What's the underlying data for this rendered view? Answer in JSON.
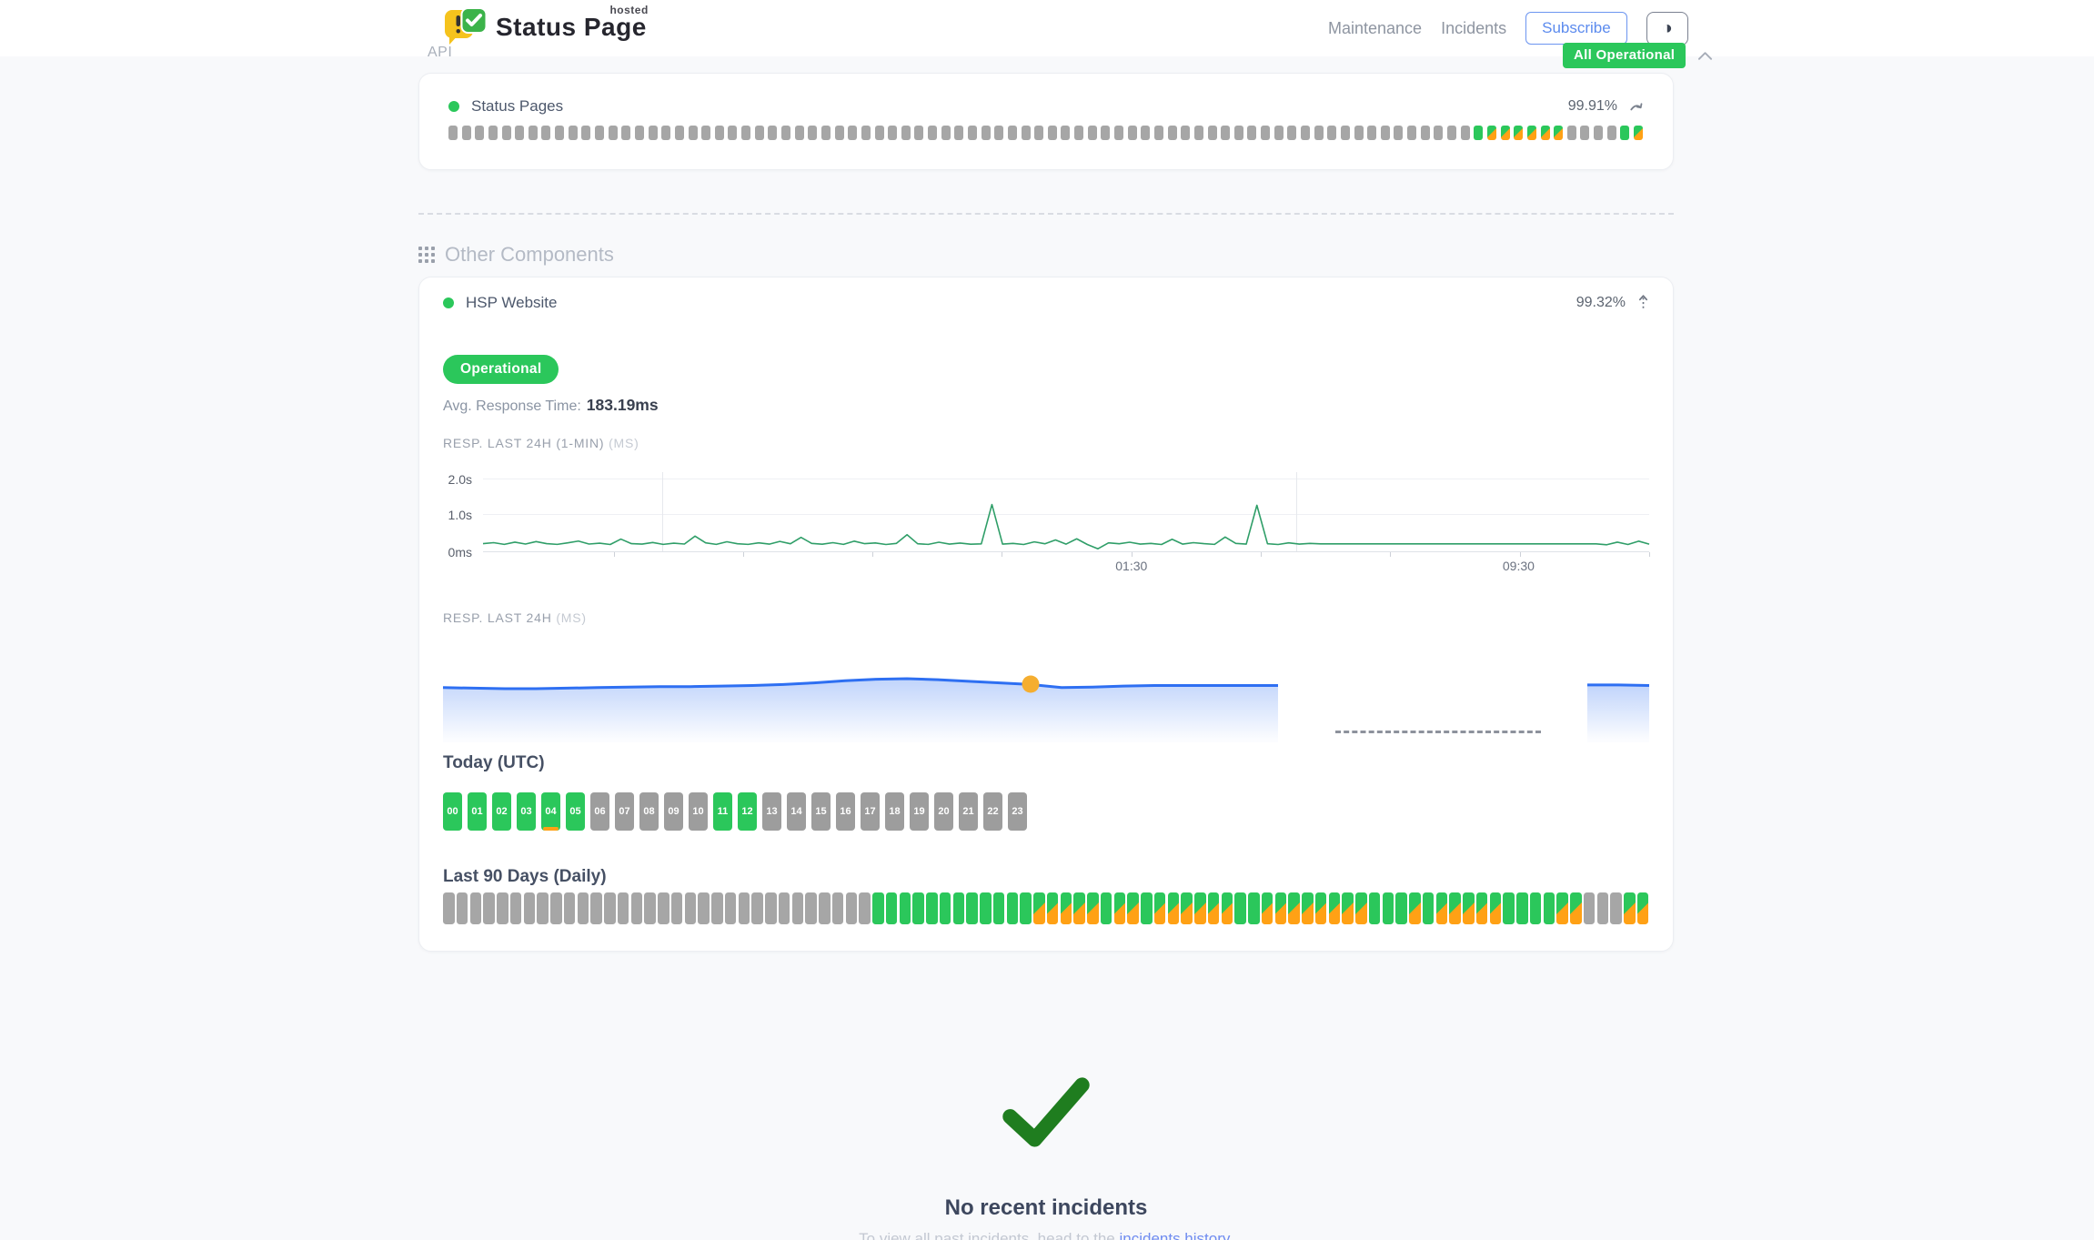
{
  "header": {
    "logo": {
      "title": "Status Page",
      "superscript": "hosted"
    },
    "nav": [
      {
        "label": "Maintenance"
      },
      {
        "label": "Incidents"
      }
    ],
    "subscribe_label": "Subscribe",
    "theme_icon": "◑",
    "status_badge": {
      "label": "All Operational",
      "color": "#2bc75b"
    }
  },
  "sections": {
    "api": {
      "title": "API",
      "component": {
        "name": "Status Pages",
        "uptime_percent": "99.91%",
        "status_color": "#2bc75b",
        "bars_legend": {
          "e": "no-data",
          "u": "operational",
          "s": "partial-degraded"
        },
        "bars": "eeeeeeeeeeeeeeeeeeeeeeeeeeeeeeeeeeeeeeeeeeeeeeeeeeeeeeeeeeeeeeeeeeeeeeeeeeeeeusssssseeeeus"
      }
    },
    "other": {
      "title": "Other Components",
      "component": {
        "name": "HSP Website",
        "uptime_percent": "99.32%",
        "status_badge": "Operational",
        "avg_response_label": "Avg. Response Time:",
        "avg_response_value": "183.19ms"
      }
    }
  },
  "chart_data": [
    {
      "id": "resp_24h_1min",
      "type": "line",
      "title": "RESP. LAST 24H (1-MIN)",
      "unit_label": "(MS)",
      "ylabel_ticks": [
        "2.0s",
        "1.0s",
        "0ms"
      ],
      "ylim_ms": [
        0,
        2150
      ],
      "xtick_labels": [
        "01:30",
        "09:30"
      ],
      "line_color": "#2f9e68",
      "values_ms": [
        185,
        210,
        165,
        225,
        175,
        240,
        185,
        165,
        205,
        255,
        175,
        195,
        162,
        310,
        185,
        172,
        215,
        165,
        195,
        175,
        390,
        205,
        163,
        235,
        182,
        165,
        205,
        172,
        245,
        182,
        355,
        192,
        170,
        212,
        163,
        252,
        183,
        203,
        162,
        192,
        430,
        182,
        163,
        222,
        172,
        202,
        168,
        178,
        1250,
        172,
        192,
        162,
        232,
        182,
        285,
        172,
        315,
        162,
        45,
        205,
        182,
        222,
        172,
        192,
        162,
        305,
        172,
        212,
        183,
        163,
        365,
        192,
        172,
        1230,
        182,
        162,
        205,
        172,
        192,
        180,
        180,
        180,
        180,
        180,
        180,
        180,
        180,
        180,
        180,
        180,
        180,
        180,
        180,
        180,
        180,
        180,
        180,
        180,
        180,
        180,
        180,
        180,
        180,
        180,
        180,
        180,
        155,
        225,
        162,
        252,
        172
      ]
    },
    {
      "id": "resp_24h",
      "type": "area",
      "title": "RESP. LAST 24H",
      "unit_label": "(MS)",
      "line_color": "#2e6ff2",
      "marker": {
        "index": 19,
        "color": "#f5ae30"
      },
      "values_ms": [
        196,
        195,
        194,
        194,
        195,
        196,
        197,
        198,
        198,
        199,
        200,
        202,
        205,
        209,
        212,
        213,
        211,
        208,
        205,
        202,
        196,
        197,
        199,
        200,
        200,
        200,
        200,
        200,
        null,
        null,
        null,
        null,
        null,
        null,
        null,
        null,
        null,
        201,
        201,
        200
      ]
    },
    {
      "id": "today_utc",
      "type": "status-blocks",
      "title": "Today (UTC)",
      "blocks": [
        {
          "label": "00",
          "status": "u"
        },
        {
          "label": "01",
          "status": "u"
        },
        {
          "label": "02",
          "status": "u"
        },
        {
          "label": "03",
          "status": "u"
        },
        {
          "label": "04",
          "status": "u",
          "degraded": true
        },
        {
          "label": "05",
          "status": "u"
        },
        {
          "label": "06",
          "status": "e"
        },
        {
          "label": "07",
          "status": "e"
        },
        {
          "label": "08",
          "status": "e"
        },
        {
          "label": "09",
          "status": "e"
        },
        {
          "label": "10",
          "status": "e"
        },
        {
          "label": "11",
          "status": "u"
        },
        {
          "label": "12",
          "status": "u"
        },
        {
          "label": "13",
          "status": "e"
        },
        {
          "label": "14",
          "status": "e"
        },
        {
          "label": "15",
          "status": "e"
        },
        {
          "label": "16",
          "status": "e"
        },
        {
          "label": "17",
          "status": "e"
        },
        {
          "label": "18",
          "status": "e"
        },
        {
          "label": "19",
          "status": "e"
        },
        {
          "label": "20",
          "status": "e"
        },
        {
          "label": "21",
          "status": "e"
        },
        {
          "label": "22",
          "status": "e"
        },
        {
          "label": "23",
          "status": "e"
        }
      ]
    },
    {
      "id": "last_90_days",
      "type": "status-bars",
      "title": "Last 90 Days (Daily)",
      "bars_legend": {
        "e": "no-data",
        "u": "operational",
        "s": "partial-degraded"
      },
      "bars": "eeeeeeeeeeeeeeeeeeeeeeeeeeeeeeeeuuuuuuuuuuuusssssussussssssuussssssssuuususssssuuuusseeess"
    }
  ],
  "incidents": {
    "title": "No recent incidents",
    "subtitle_prefix": "To view all past incidents, head to the ",
    "link_text": "incidents history",
    "subtitle_suffix": "."
  },
  "colors": {
    "green": "#2bc75b",
    "orange": "#ffa115",
    "gray_bar": "#a6a6a6",
    "gray_block": "#9d9d9d",
    "blue_line": "#2e6ff2",
    "green_line": "#2f9e68",
    "marker_orange": "#f5ae30",
    "check_green": "#1f7d1f",
    "link_blue": "#6f8cf0"
  }
}
